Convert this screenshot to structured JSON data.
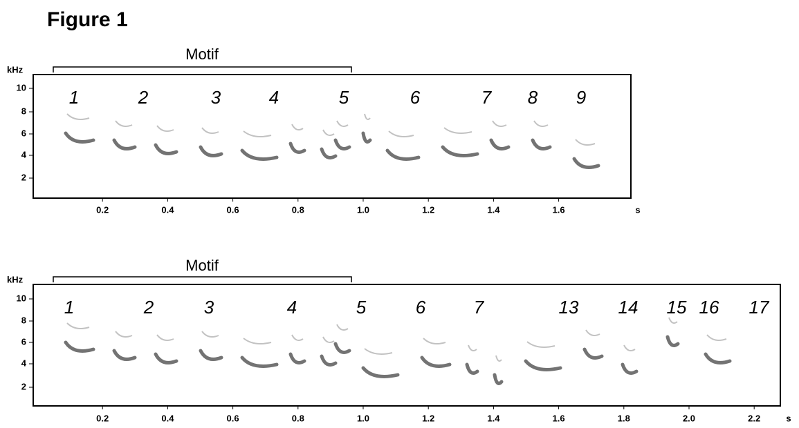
{
  "title": "Figure 1",
  "panels": [
    {
      "bracket_label": "Motif",
      "y_unit": "kHz",
      "x_unit": "s",
      "yticks": [
        "10",
        "8",
        "6",
        "4",
        "2"
      ],
      "xticks": [
        "0.2",
        "0.4",
        "0.6",
        "0.8",
        "1.0",
        "1.2",
        "1.4",
        "1.6"
      ],
      "syllables": [
        "1",
        "2",
        "3",
        "4",
        "5",
        "6",
        "7",
        "8",
        "9"
      ]
    },
    {
      "bracket_label": "Motif",
      "y_unit": "kHz",
      "x_unit": "s",
      "yticks": [
        "10",
        "8",
        "6",
        "4",
        "2"
      ],
      "xticks": [
        "0.2",
        "0.4",
        "0.6",
        "0.8",
        "1.0",
        "1.2",
        "1.4",
        "1.6",
        "1.8",
        "2.0",
        "2.2"
      ],
      "syllables": [
        "1",
        "2",
        "3",
        "4",
        "5",
        "6",
        "7",
        "13",
        "14",
        "15",
        "16",
        "17"
      ]
    }
  ]
}
